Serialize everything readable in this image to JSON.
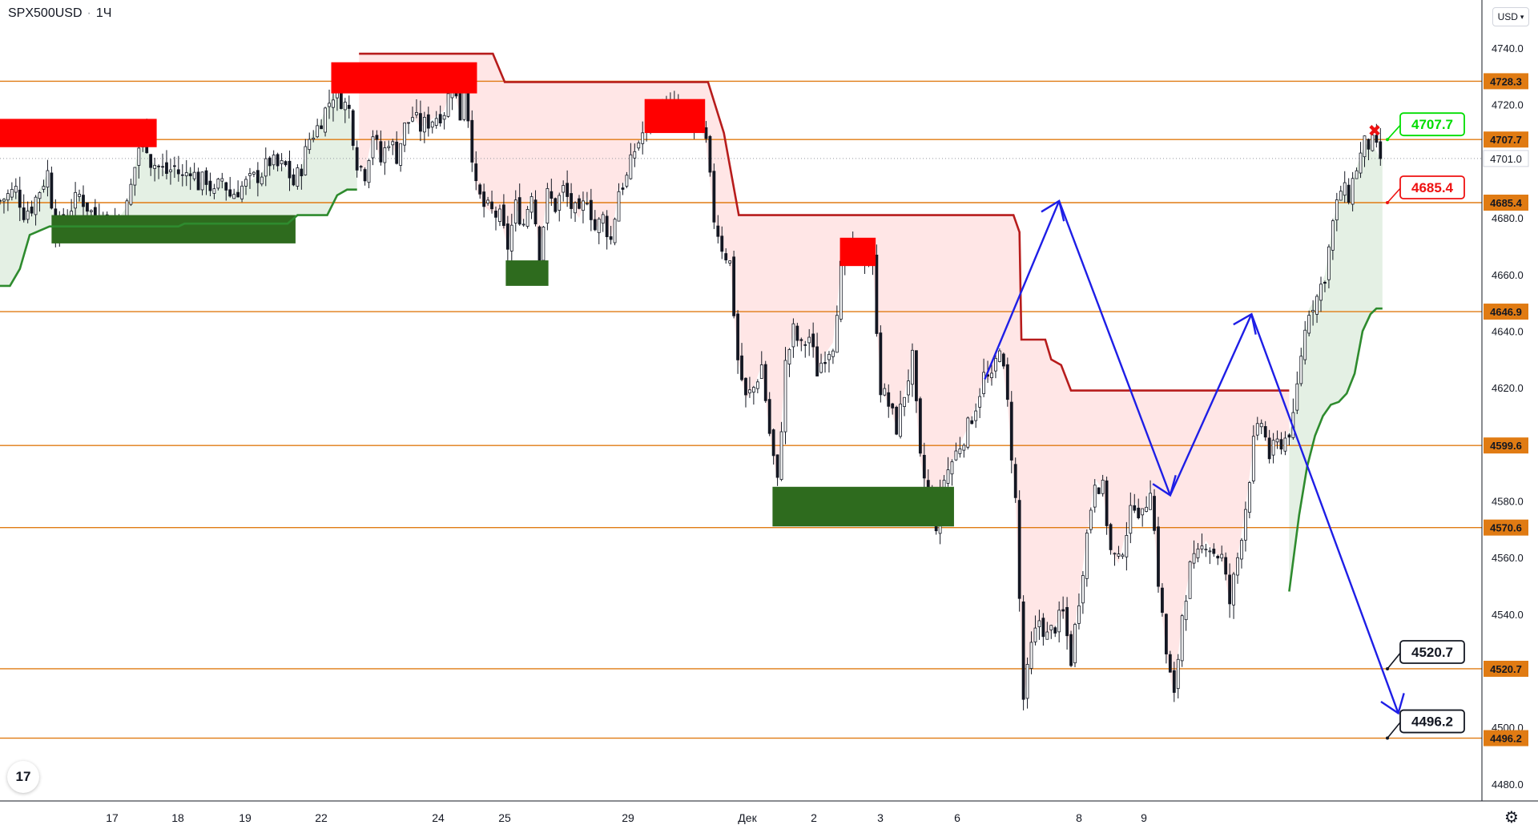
{
  "header": {
    "symbol": "SPX500USD",
    "separator": "·",
    "interval": "1Ч"
  },
  "currency_select": {
    "label": "USD",
    "icon": "chevron-down-icon"
  },
  "logo": {
    "text": "17",
    "icon": "tradingview-logo-icon"
  },
  "settings": {
    "icon": "gear-icon"
  },
  "colors": {
    "level": "#e07b13",
    "supply": "#ff0000",
    "demand": "#2e6b1e",
    "stop_line": "#b71c1c",
    "trail_up": "#2e8b2e",
    "projection": "#1e1ee6",
    "target_up": "#00dd00",
    "target_down": "#ee1111"
  },
  "chart_data": {
    "type": "candlestick",
    "title": "",
    "ylim": [
      4474,
      4757
    ],
    "y_ticks": [
      "4740.0",
      "4720.0",
      "4680.0",
      "4660.0",
      "4640.0",
      "4620.0",
      "4580.0",
      "4560.0",
      "4540.0",
      "4500.0",
      "4480.0"
    ],
    "x_ticks": [
      "17",
      "18",
      "19",
      "22",
      "24",
      "25",
      "29",
      "Дек",
      "2",
      "3",
      "6",
      "8",
      "9"
    ],
    "horizontal_levels": [
      {
        "value": 4728.3,
        "label": "4728.3"
      },
      {
        "value": 4707.7,
        "label": "4707.7"
      },
      {
        "value": 4685.4,
        "label": "4685.4"
      },
      {
        "value": 4646.9,
        "label": "4646.9"
      },
      {
        "value": 4599.6,
        "label": "4599.6"
      },
      {
        "value": 4570.6,
        "label": "4570.6"
      },
      {
        "value": 4520.7,
        "label": "4520.7"
      },
      {
        "value": 4496.2,
        "label": "4496.2"
      }
    ],
    "last_price": {
      "value": 4701.0,
      "label": "4701.0"
    },
    "target_labels": [
      {
        "text": "4707.7",
        "kind": "up"
      },
      {
        "text": "4685.4",
        "kind": "down"
      },
      {
        "text": "4520.7",
        "kind": "neutral"
      },
      {
        "text": "4496.2",
        "kind": "neutral"
      }
    ],
    "close_marker": "✖",
    "close_path": [
      [
        0,
        4686
      ],
      [
        8,
        4688
      ],
      [
        16,
        4690
      ],
      [
        24,
        4682
      ],
      [
        32,
        4684
      ],
      [
        40,
        4690
      ],
      [
        48,
        4696
      ],
      [
        56,
        4676
      ],
      [
        64,
        4678
      ],
      [
        72,
        4684
      ],
      [
        80,
        4688
      ],
      [
        88,
        4684
      ],
      [
        96,
        4680
      ],
      [
        104,
        4682
      ],
      [
        112,
        4678
      ],
      [
        120,
        4680
      ],
      [
        128,
        4684
      ],
      [
        136,
        4698
      ],
      [
        144,
        4712
      ],
      [
        152,
        4700
      ],
      [
        160,
        4698
      ],
      [
        168,
        4696
      ],
      [
        176,
        4698
      ],
      [
        184,
        4694
      ],
      [
        192,
        4698
      ],
      [
        200,
        4692
      ],
      [
        208,
        4694
      ],
      [
        216,
        4688
      ],
      [
        224,
        4694
      ],
      [
        232,
        4688
      ],
      [
        240,
        4690
      ],
      [
        248,
        4692
      ],
      [
        256,
        4694
      ],
      [
        264,
        4696
      ],
      [
        272,
        4700
      ],
      [
        280,
        4698
      ],
      [
        288,
        4698
      ],
      [
        296,
        4692
      ],
      [
        304,
        4698
      ],
      [
        312,
        4708
      ],
      [
        320,
        4712
      ],
      [
        328,
        4718
      ],
      [
        336,
        4724
      ],
      [
        344,
        4722
      ],
      [
        352,
        4718
      ],
      [
        360,
        4700
      ],
      [
        368,
        4696
      ],
      [
        376,
        4710
      ],
      [
        384,
        4700
      ],
      [
        392,
        4708
      ],
      [
        400,
        4702
      ],
      [
        408,
        4712
      ],
      [
        416,
        4716
      ],
      [
        424,
        4712
      ],
      [
        432,
        4714
      ],
      [
        440,
        4716
      ],
      [
        448,
        4718
      ],
      [
        456,
        4728
      ],
      [
        464,
        4716
      ],
      [
        468,
        4730
      ],
      [
        472,
        4716
      ],
      [
        480,
        4690
      ],
      [
        488,
        4684
      ],
      [
        496,
        4682
      ],
      [
        504,
        4680
      ],
      [
        512,
        4670
      ],
      [
        520,
        4684
      ],
      [
        528,
        4678
      ],
      [
        536,
        4690
      ],
      [
        544,
        4668
      ],
      [
        552,
        4688
      ],
      [
        560,
        4684
      ],
      [
        568,
        4690
      ],
      [
        576,
        4684
      ],
      [
        584,
        4680
      ],
      [
        592,
        4688
      ],
      [
        600,
        4676
      ],
      [
        608,
        4680
      ],
      [
        616,
        4672
      ],
      [
        624,
        4690
      ],
      [
        632,
        4694
      ],
      [
        640,
        4704
      ],
      [
        648,
        4710
      ],
      [
        656,
        4716
      ],
      [
        664,
        4716
      ],
      [
        672,
        4720
      ],
      [
        680,
        4718
      ],
      [
        688,
        4716
      ],
      [
        696,
        4712
      ],
      [
        704,
        4714
      ],
      [
        712,
        4706
      ],
      [
        720,
        4680
      ],
      [
        728,
        4670
      ],
      [
        736,
        4664
      ],
      [
        744,
        4630
      ],
      [
        752,
        4616
      ],
      [
        760,
        4620
      ],
      [
        768,
        4628
      ],
      [
        776,
        4604
      ],
      [
        784,
        4586
      ],
      [
        792,
        4628
      ],
      [
        800,
        4640
      ],
      [
        808,
        4634
      ],
      [
        816,
        4638
      ],
      [
        824,
        4626
      ],
      [
        832,
        4632
      ],
      [
        840,
        4636
      ],
      [
        848,
        4662
      ],
      [
        856,
        4666
      ],
      [
        864,
        4668
      ],
      [
        872,
        4666
      ],
      [
        880,
        4664
      ],
      [
        888,
        4620
      ],
      [
        896,
        4614
      ],
      [
        904,
        4606
      ],
      [
        912,
        4618
      ],
      [
        920,
        4630
      ],
      [
        928,
        4594
      ],
      [
        936,
        4582
      ],
      [
        944,
        4572
      ],
      [
        952,
        4588
      ],
      [
        960,
        4594
      ],
      [
        968,
        4600
      ],
      [
        976,
        4606
      ],
      [
        984,
        4614
      ],
      [
        992,
        4624
      ],
      [
        1000,
        4622
      ],
      [
        1008,
        4636
      ],
      [
        1016,
        4614
      ],
      [
        1024,
        4580
      ],
      [
        1032,
        4510
      ],
      [
        1040,
        4528
      ],
      [
        1048,
        4538
      ],
      [
        1056,
        4532
      ],
      [
        1064,
        4536
      ],
      [
        1072,
        4540
      ],
      [
        1080,
        4524
      ],
      [
        1088,
        4546
      ],
      [
        1096,
        4568
      ],
      [
        1104,
        4588
      ],
      [
        1112,
        4584
      ],
      [
        1120,
        4562
      ],
      [
        1128,
        4558
      ],
      [
        1136,
        4570
      ],
      [
        1144,
        4580
      ],
      [
        1152,
        4574
      ],
      [
        1160,
        4586
      ],
      [
        1168,
        4552
      ],
      [
        1176,
        4526
      ],
      [
        1184,
        4510
      ],
      [
        1192,
        4540
      ],
      [
        1200,
        4556
      ],
      [
        1208,
        4560
      ],
      [
        1216,
        4566
      ],
      [
        1224,
        4562
      ],
      [
        1232,
        4560
      ],
      [
        1240,
        4544
      ],
      [
        1248,
        4560
      ],
      [
        1256,
        4578
      ],
      [
        1264,
        4600
      ],
      [
        1272,
        4608
      ],
      [
        1280,
        4596
      ],
      [
        1288,
        4600
      ],
      [
        1296,
        4602
      ],
      [
        1304,
        4608
      ],
      [
        1312,
        4632
      ],
      [
        1320,
        4648
      ],
      [
        1328,
        4652
      ],
      [
        1336,
        4660
      ],
      [
        1344,
        4678
      ],
      [
        1352,
        4690
      ],
      [
        1360,
        4688
      ],
      [
        1368,
        4698
      ],
      [
        1376,
        4706
      ],
      [
        1384,
        4706
      ],
      [
        1392,
        4701
      ]
    ],
    "supply_zones": [
      {
        "x_from": 0,
        "x_to": 158,
        "top": 4715,
        "bottom": 4705
      },
      {
        "x_from": 334,
        "x_to": 481,
        "top": 4735,
        "bottom": 4724
      },
      {
        "x_from": 650,
        "x_to": 711,
        "top": 4722,
        "bottom": 4710
      },
      {
        "x_from": 847,
        "x_to": 883,
        "top": 4673,
        "bottom": 4663
      }
    ],
    "demand_zones": [
      {
        "x_from": 52,
        "x_to": 298,
        "top": 4681,
        "bottom": 4671
      },
      {
        "x_from": 510,
        "x_to": 553,
        "top": 4665,
        "bottom": 4656
      },
      {
        "x_from": 779,
        "x_to": 962,
        "top": 4585,
        "bottom": 4571
      }
    ],
    "stop_line_path": [
      [
        362,
        4738
      ],
      [
        497,
        4738
      ],
      [
        509,
        4728
      ],
      [
        714,
        4728
      ],
      [
        730,
        4710
      ],
      [
        745,
        4681
      ],
      [
        1022,
        4681
      ],
      [
        1028,
        4675
      ],
      [
        1030,
        4637
      ],
      [
        1054,
        4637
      ],
      [
        1060,
        4630
      ],
      [
        1070,
        4628
      ],
      [
        1080,
        4619
      ],
      [
        1300,
        4619
      ]
    ],
    "trail_line_upper_path": [
      [
        0,
        4656
      ],
      [
        10,
        4656
      ],
      [
        20,
        4662
      ],
      [
        30,
        4674
      ],
      [
        50,
        4677
      ],
      [
        180,
        4677
      ],
      [
        186,
        4678
      ],
      [
        290,
        4678
      ],
      [
        300,
        4681
      ],
      [
        330,
        4681
      ],
      [
        340,
        4688
      ],
      [
        350,
        4690
      ],
      [
        360,
        4690
      ]
    ],
    "trail_line_lower_path": [
      [
        1300,
        4548
      ],
      [
        1310,
        4575
      ],
      [
        1318,
        4592
      ],
      [
        1326,
        4603
      ],
      [
        1334,
        4610
      ],
      [
        1342,
        4614
      ],
      [
        1350,
        4615
      ],
      [
        1358,
        4618
      ],
      [
        1366,
        4625
      ],
      [
        1374,
        4640
      ],
      [
        1382,
        4646
      ],
      [
        1388,
        4648
      ],
      [
        1394,
        4648
      ]
    ],
    "projection_path": [
      [
        993,
        4623
      ],
      [
        1068,
        4686
      ],
      [
        1180,
        4582
      ],
      [
        1262,
        4646
      ],
      [
        1410,
        4505
      ]
    ]
  }
}
